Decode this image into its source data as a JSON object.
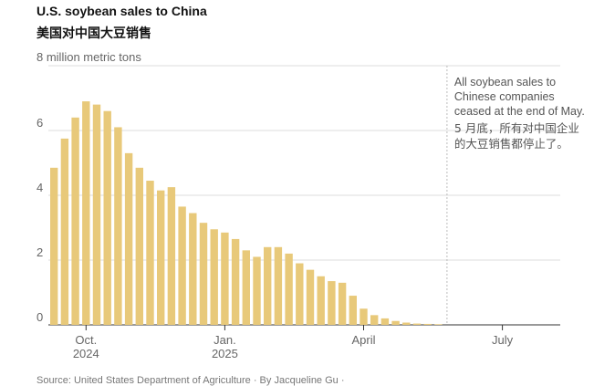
{
  "header": {
    "title": "U.S. soybean sales to China",
    "subtitle": "美国对中国大豆销售"
  },
  "footer": {
    "source": "Source: United States Department of Agriculture · By Jacqueline Gu ·"
  },
  "chart_data": {
    "type": "bar",
    "title": "U.S. soybean sales to China",
    "subtitle": "美国对中国大豆销售",
    "ylabel": "8 million metric tons",
    "ylim": [
      0,
      8
    ],
    "yticks": [
      0,
      2,
      4,
      6
    ],
    "grid": true,
    "bar_color": "#e8c97a",
    "grid_color": "#dddddd",
    "annotation_color": "#bbbbbb",
    "x_ticks": [
      {
        "label": "Oct.",
        "label2": "2024",
        "week": 3
      },
      {
        "label": "Jan.",
        "label2": "2025",
        "week": 16
      },
      {
        "label": "April",
        "label2": "",
        "week": 29
      },
      {
        "label": "July",
        "label2": "",
        "week": 42
      }
    ],
    "annotation": {
      "week": 37,
      "lines_en": [
        "All soybean sales to",
        "Chinese companies",
        "ceased at the end of May."
      ],
      "lines_zh": [
        "5 月底，所有对中国企业",
        "的大豆销售都停止了。"
      ]
    },
    "series": [
      {
        "values": [
          4.85,
          5.75,
          6.4,
          6.9,
          6.8,
          6.6,
          6.1,
          5.3,
          4.85,
          4.45,
          4.15,
          4.25,
          3.65,
          3.45,
          3.15,
          2.95,
          2.85,
          2.65,
          2.3,
          2.1,
          2.4,
          2.4,
          2.2,
          1.9,
          1.7,
          1.5,
          1.35,
          1.3,
          0.9,
          0.5,
          0.3,
          0.2,
          0.12,
          0.07,
          0.04,
          0.03,
          0.02
        ]
      }
    ]
  }
}
